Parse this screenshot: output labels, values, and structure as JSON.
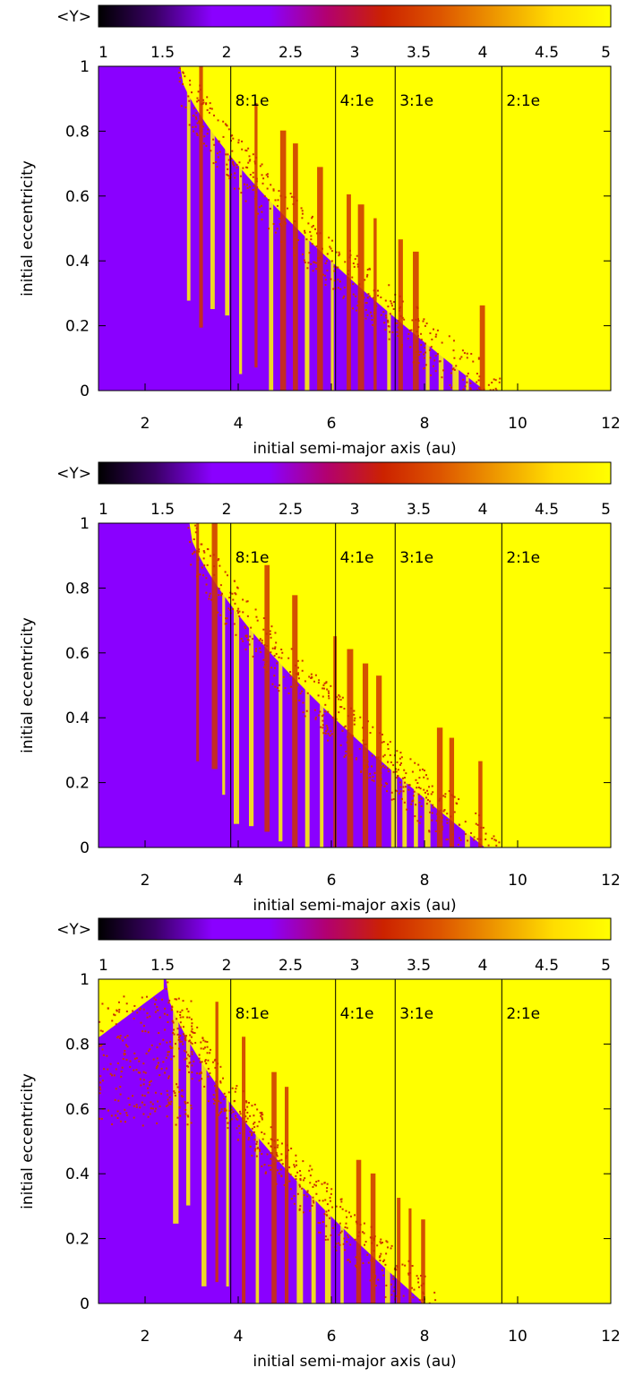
{
  "colors": {
    "purple": "#8a00ff",
    "yellow": "#ffff00",
    "orange_red": "#cc3300",
    "frame": "#000000"
  },
  "chart_data": [
    {
      "type": "heatmap",
      "colorbar": {
        "label": "<Y>",
        "range": [
          1,
          5
        ],
        "ticks": [
          "1",
          "1.5",
          "2",
          "2.5",
          "3",
          "3.5",
          "4",
          "4.5",
          "5"
        ],
        "stops": [
          "#000000",
          "#3a0066",
          "#8a00ff",
          "#8a00ff",
          "#b20070",
          "#cc2200",
          "#dd5500",
          "#ee9900",
          "#ffdd00",
          "#ffff00"
        ]
      },
      "xlabel": "initial semi-major axis (au)",
      "ylabel": "initial eccentricity",
      "xlim": [
        1,
        12
      ],
      "ylim": [
        0,
        1
      ],
      "xticks": [
        "2",
        "4",
        "6",
        "8",
        "10",
        "12"
      ],
      "yticks": [
        "0",
        "0.2",
        "0.4",
        "0.6",
        "0.8",
        "1"
      ],
      "resonances": [
        {
          "label": "8:1e",
          "a": 3.84
        },
        {
          "label": "4:1e",
          "a": 6.09
        },
        {
          "label": "3:1e",
          "a": 7.37
        },
        {
          "label": "2:1e",
          "a": 9.66
        }
      ],
      "regions": {
        "stable_edge_a": 2.7,
        "chaos_high_e_a": 3.0,
        "low_e_stable_limit_a": 9.3,
        "high_e_stable_tail": 0.12
      }
    },
    {
      "type": "heatmap",
      "colorbar": {
        "label": "<Y>",
        "range": [
          1,
          5
        ],
        "ticks": [
          "1",
          "1.5",
          "2",
          "2.5",
          "3",
          "3.5",
          "4",
          "4.5",
          "5"
        ],
        "stops": [
          "#000000",
          "#3a0066",
          "#8a00ff",
          "#8a00ff",
          "#b20070",
          "#cc2200",
          "#dd5500",
          "#ee9900",
          "#ffdd00",
          "#ffff00"
        ]
      },
      "xlabel": "initial semi-major axis (au)",
      "ylabel": "initial eccentricity",
      "xlim": [
        1,
        12
      ],
      "ylim": [
        0,
        1
      ],
      "xticks": [
        "2",
        "4",
        "6",
        "8",
        "10",
        "12"
      ],
      "yticks": [
        "0",
        "0.2",
        "0.4",
        "0.6",
        "0.8",
        "1"
      ],
      "resonances": [
        {
          "label": "8:1e",
          "a": 3.84
        },
        {
          "label": "4:1e",
          "a": 6.09
        },
        {
          "label": "3:1e",
          "a": 7.37
        },
        {
          "label": "2:1e",
          "a": 9.66
        }
      ],
      "regions": {
        "stable_edge_a": 2.9,
        "chaos_high_e_a": 3.0,
        "low_e_stable_limit_a": 9.3,
        "high_e_stable_tail": 0.08
      }
    },
    {
      "type": "heatmap",
      "colorbar": {
        "label": "<Y>",
        "range": [
          1,
          5
        ],
        "ticks": [
          "1",
          "1.5",
          "2",
          "2.5",
          "3",
          "3.5",
          "4",
          "4.5",
          "5"
        ],
        "stops": [
          "#000000",
          "#3a0066",
          "#8a00ff",
          "#8a00ff",
          "#b20070",
          "#cc2200",
          "#dd5500",
          "#ee9900",
          "#ffdd00",
          "#ffff00"
        ]
      },
      "xlabel": "initial semi-major axis (au)",
      "ylabel": "initial eccentricity",
      "xlim": [
        1,
        12
      ],
      "ylim": [
        0,
        1
      ],
      "xticks": [
        "2",
        "4",
        "6",
        "8",
        "10",
        "12"
      ],
      "yticks": [
        "0",
        "0.2",
        "0.4",
        "0.6",
        "0.8",
        "1"
      ],
      "resonances": [
        {
          "label": "8:1e",
          "a": 3.84
        },
        {
          "label": "4:1e",
          "a": 6.09
        },
        {
          "label": "3:1e",
          "a": 7.37
        },
        {
          "label": "2:1e",
          "a": 9.66
        }
      ],
      "regions": {
        "stable_edge_a": 2.4,
        "chaos_high_e_a": 1.0,
        "low_e_stable_limit_a": 8.0,
        "high_e_stable_tail": 0.02
      }
    }
  ]
}
